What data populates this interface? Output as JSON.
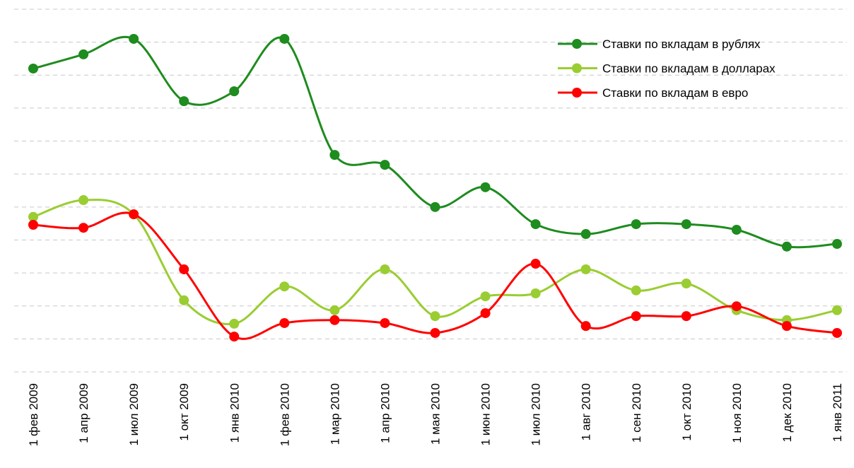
{
  "chart_data": {
    "type": "line",
    "categories": [
      "1 фев 2009",
      "1 апр 2009",
      "1 июл 2009",
      "1 окт 2009",
      "1 янв 2010",
      "1 фев 2010",
      "1 мар 2010",
      "1 апр 2010",
      "1 мая 2010",
      "1 июн 2010",
      "1 июл 2010",
      "1 авг 2010",
      "1 сен 2010",
      "1 окт 2010",
      "1 ноя 2010",
      "1 дек 2010",
      "1 янв 2011"
    ],
    "series": [
      {
        "name": "Ставки по вкладам в рублях",
        "color": "#1e8c1e",
        "values": [
          9.2,
          9.63,
          10.1,
          8.21,
          8.51,
          10.1,
          6.58,
          6.28,
          5.0,
          5.6,
          4.48,
          4.18,
          4.48,
          4.48,
          4.31,
          3.8,
          3.88
        ]
      },
      {
        "name": "Ставки по вкладам в долларах",
        "color": "#9acd32",
        "values": [
          4.7,
          5.21,
          4.78,
          2.17,
          1.46,
          2.59,
          1.87,
          3.11,
          1.69,
          2.29,
          2.38,
          3.11,
          2.47,
          2.68,
          1.87,
          1.57,
          1.87
        ]
      },
      {
        "name": "Ставки по вкладам в евро",
        "color": "#ff0000",
        "values": [
          4.46,
          4.37,
          4.78,
          3.11,
          1.07,
          1.48,
          1.57,
          1.48,
          1.18,
          1.78,
          3.28,
          1.39,
          1.69,
          1.69,
          1.99,
          1.39,
          1.18
        ]
      }
    ],
    "ylim": [
      0,
      11
    ],
    "yticks": [
      0,
      1,
      2,
      3,
      4,
      5,
      6,
      7,
      8,
      9,
      10,
      11
    ],
    "grid": true,
    "legend": "top-right"
  }
}
